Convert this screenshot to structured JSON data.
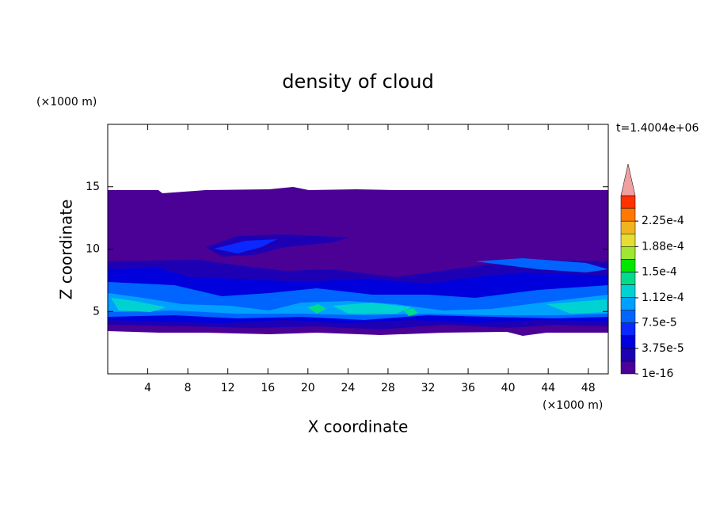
{
  "chart_data": {
    "type": "contour",
    "title": "density of cloud",
    "x_label": "X coordinate",
    "y_label": "Z coordinate",
    "x_unit": "(×1000 m)",
    "y_unit": "(×1000 m)",
    "time_label": "t=1.4004e+06",
    "xlim": [
      0,
      50
    ],
    "xticks": [
      4,
      8,
      12,
      16,
      20,
      24,
      28,
      32,
      36,
      40,
      44,
      48
    ],
    "ylim": [
      0,
      20
    ],
    "yticks": [
      5,
      10,
      15
    ],
    "colorbar": {
      "colors": [
        "#4b0096",
        "#1e00b4",
        "#0000dc",
        "#0a28ff",
        "#0064ff",
        "#00a0ff",
        "#00d2d2",
        "#00dc8c",
        "#00e600",
        "#a0e632",
        "#e6dc32",
        "#f0b41e",
        "#ff7800",
        "#ff3200"
      ],
      "over_color": "#f0a0a0",
      "levels": [
        {
          "value": 1e-16,
          "label": "1e-16"
        },
        {
          "value": 3.75e-05,
          "label": "3.75e-5"
        },
        {
          "value": 7.5e-05,
          "label": "7.5e-5"
        },
        {
          "value": 0.000112,
          "label": "1.12e-4"
        },
        {
          "value": 0.00015,
          "label": "1.5e-4"
        },
        {
          "value": 0.0001875,
          "label": "1.88e-4"
        },
        {
          "value": 0.000225,
          "label": "2.25e-4"
        }
      ]
    }
  }
}
